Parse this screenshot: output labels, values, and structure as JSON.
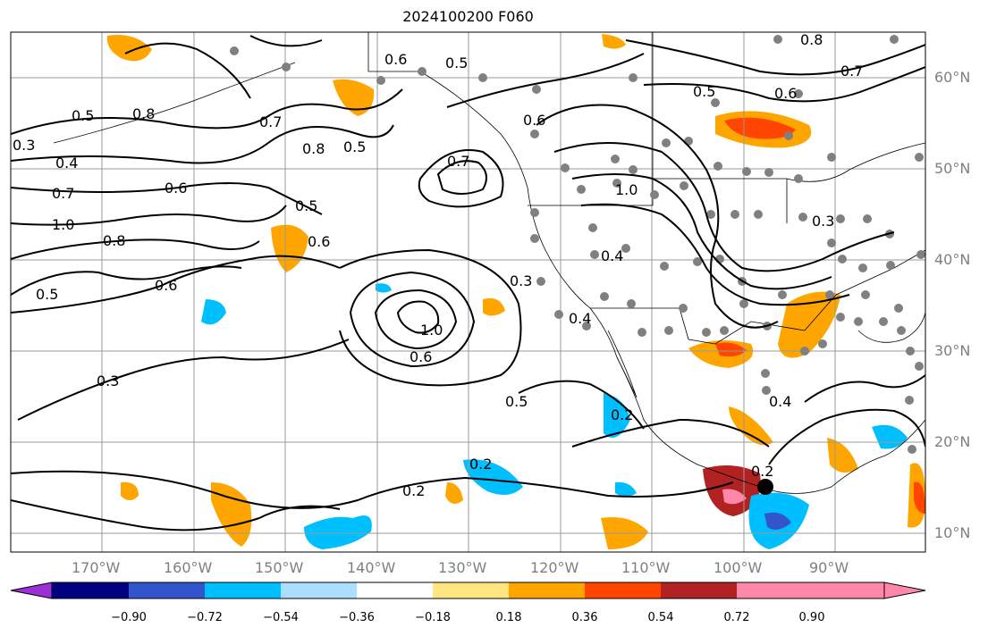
{
  "title": "2024100200 F060",
  "lon_labels": [
    "170°W",
    "160°W",
    "150°W",
    "140°W",
    "130°W",
    "120°W",
    "110°W",
    "100°W",
    "90°W"
  ],
  "lat_labels": [
    "60°N",
    "50°N",
    "40°N",
    "30°N",
    "20°N",
    "10°N"
  ],
  "colorbar": {
    "ticks": [
      "−0.90",
      "−0.72",
      "−0.54",
      "−0.36",
      "−0.18",
      "0.18",
      "0.36",
      "0.54",
      "0.72",
      "0.90"
    ],
    "colors": [
      "#9b30d9",
      "#000080",
      "#3355cc",
      "#00bfff",
      "#aadfff",
      "#ffffff",
      "#ffe680",
      "#ffa500",
      "#ff4500",
      "#b22222",
      "#ff88aa"
    ]
  },
  "contour_labels": [
    "0.3",
    "0.4",
    "0.5",
    "0.6",
    "0.7",
    "0.8",
    "1.0",
    "0.2"
  ],
  "colors": {
    "contour": "#000000",
    "grid": "#999999",
    "station": "#808080",
    "marker": "#000000"
  }
}
